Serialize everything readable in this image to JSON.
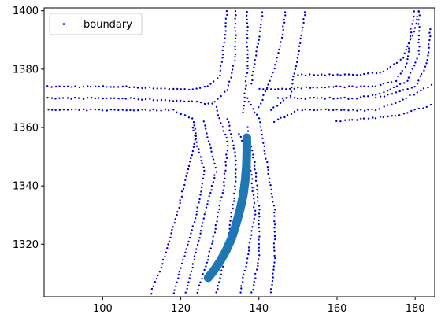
{
  "chart_data": {
    "type": "scatter",
    "title": "",
    "xlabel": "",
    "ylabel": "",
    "xlim": [
      85,
      185
    ],
    "ylim": [
      1302,
      1401
    ],
    "x_ticks": [
      100,
      120,
      140,
      160,
      180
    ],
    "y_ticks": [
      1320,
      1340,
      1360,
      1380,
      1400
    ],
    "grid": false,
    "legend": {
      "placement": "top-left",
      "entries": [
        "boundary"
      ]
    },
    "colors": {
      "boundary": "#0000cc",
      "trajectory": "#1f77b4"
    },
    "boundary_lines": [
      {
        "points": [
          [
            86,
            1374
          ],
          [
            105,
            1374
          ],
          [
            122,
            1373
          ],
          [
            127,
            1374
          ],
          [
            130,
            1378
          ],
          [
            131,
            1388
          ],
          [
            132,
            1401
          ]
        ]
      },
      {
        "points": [
          [
            86,
            1370
          ],
          [
            105,
            1370
          ],
          [
            122,
            1369
          ],
          [
            128,
            1368
          ],
          [
            132,
            1373
          ],
          [
            134,
            1384
          ],
          [
            134,
            1401
          ]
        ]
      },
      {
        "points": [
          [
            86,
            1366
          ],
          [
            105,
            1366
          ],
          [
            118,
            1366
          ],
          [
            123,
            1363
          ],
          [
            124,
            1357
          ],
          [
            122,
            1347
          ],
          [
            119,
            1330
          ],
          [
            115,
            1312
          ],
          [
            112,
            1302
          ]
        ]
      },
      {
        "points": [
          [
            123,
            1360
          ],
          [
            126,
            1345
          ],
          [
            124,
            1330
          ],
          [
            120,
            1312
          ],
          [
            118,
            1302
          ]
        ]
      },
      {
        "points": [
          [
            126,
            1362
          ],
          [
            129,
            1345
          ],
          [
            126,
            1330
          ],
          [
            123,
            1312
          ],
          [
            121,
            1302
          ]
        ]
      },
      {
        "points": [
          [
            129,
            1367
          ],
          [
            132,
            1355
          ],
          [
            131,
            1340
          ],
          [
            128,
            1320
          ],
          [
            124,
            1302
          ]
        ]
      },
      {
        "points": [
          [
            132,
            1363
          ],
          [
            134,
            1350
          ],
          [
            134,
            1340
          ],
          [
            132,
            1320
          ],
          [
            129,
            1302
          ]
        ]
      },
      {
        "points": [
          [
            135,
            1358
          ],
          [
            138,
            1345
          ],
          [
            139,
            1330
          ],
          [
            137,
            1315
          ],
          [
            135,
            1302
          ]
        ]
      },
      {
        "points": [
          [
            137,
            1360
          ],
          [
            139,
            1347
          ],
          [
            140,
            1332
          ],
          [
            140,
            1315
          ],
          [
            138,
            1302
          ]
        ]
      },
      {
        "points": [
          [
            137,
            1370
          ],
          [
            140,
            1363
          ],
          [
            142,
            1348
          ],
          [
            144,
            1332
          ],
          [
            144,
            1315
          ],
          [
            143,
            1302
          ]
        ]
      },
      {
        "points": [
          [
            136,
            1365
          ],
          [
            137,
            1380
          ],
          [
            137,
            1401
          ]
        ]
      },
      {
        "points": [
          [
            138,
            1375
          ],
          [
            140,
            1390
          ],
          [
            141,
            1401
          ]
        ]
      },
      {
        "points": [
          [
            140,
            1367
          ],
          [
            144,
            1380
          ],
          [
            146,
            1392
          ],
          [
            147,
            1401
          ]
        ]
      },
      {
        "points": [
          [
            143,
            1366
          ],
          [
            148,
            1371
          ],
          [
            150,
            1385
          ],
          [
            152,
            1401
          ]
        ]
      },
      {
        "points": [
          [
            144,
            1362
          ],
          [
            150,
            1366
          ],
          [
            170,
            1366
          ],
          [
            176,
            1369
          ],
          [
            185,
            1375
          ]
        ]
      },
      {
        "points": [
          [
            145,
            1370
          ],
          [
            165,
            1370
          ],
          [
            172,
            1372
          ],
          [
            178,
            1376
          ],
          [
            181,
            1385
          ],
          [
            181,
            1401
          ]
        ]
      },
      {
        "points": [
          [
            140,
            1373
          ],
          [
            160,
            1374
          ],
          [
            170,
            1374
          ],
          [
            175,
            1376
          ],
          [
            178,
            1382
          ],
          [
            179,
            1394
          ],
          [
            180,
            1401
          ]
        ]
      },
      {
        "points": [
          [
            150,
            1378
          ],
          [
            165,
            1378
          ],
          [
            172,
            1379
          ],
          [
            177,
            1384
          ],
          [
            180,
            1394
          ],
          [
            181,
            1401
          ]
        ]
      },
      {
        "points": [
          [
            170,
            1370
          ],
          [
            180,
            1374
          ],
          [
            183,
            1382
          ],
          [
            184,
            1395
          ]
        ]
      },
      {
        "points": [
          [
            160,
            1362
          ],
          [
            175,
            1364
          ],
          [
            185,
            1368
          ]
        ]
      }
    ],
    "trajectory": [
      [
        127,
        1308.5
      ],
      [
        128.5,
        1311
      ],
      [
        130,
        1314
      ],
      [
        131.5,
        1317.5
      ],
      [
        133,
        1322
      ],
      [
        134.2,
        1327
      ],
      [
        135.2,
        1332
      ],
      [
        136,
        1337
      ],
      [
        136.5,
        1342
      ],
      [
        136.8,
        1347
      ],
      [
        136.9,
        1352
      ],
      [
        136.9,
        1356.5
      ]
    ]
  }
}
